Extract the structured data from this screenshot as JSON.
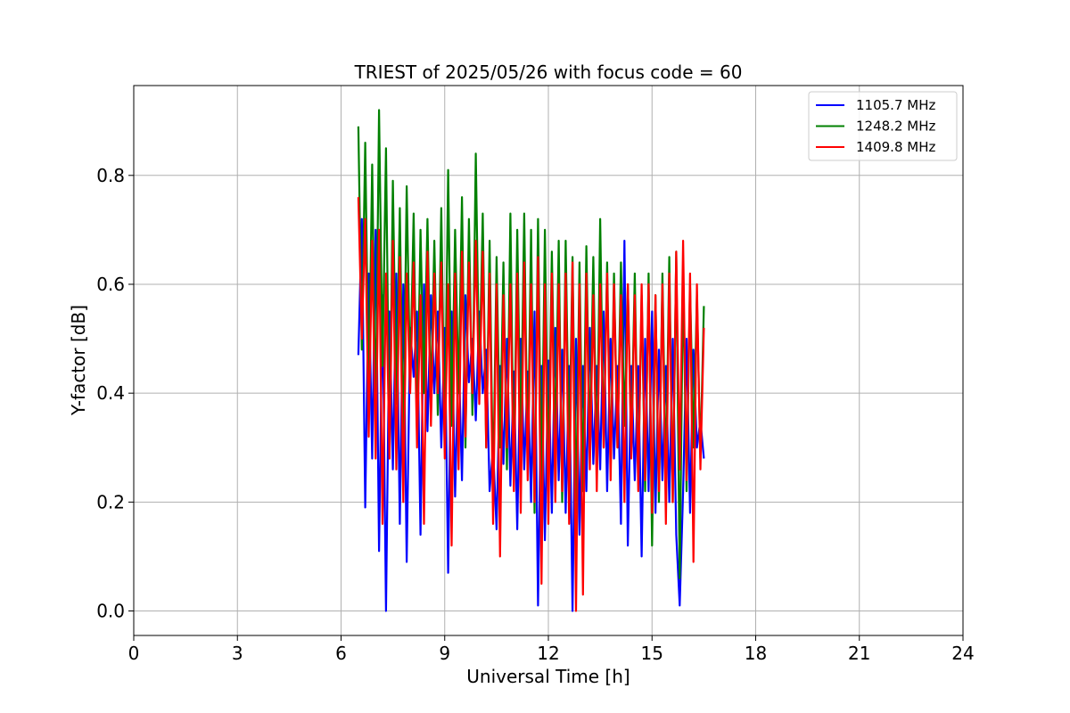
{
  "chart_data": {
    "type": "line",
    "title": "TRIEST of 2025/05/26 with focus code = 60",
    "xlabel": "Universal Time [h]",
    "ylabel": "Y-factor [dB]",
    "xlim": [
      0,
      24
    ],
    "ylim": [
      -0.045,
      0.965
    ],
    "xticks": [
      0,
      3,
      6,
      9,
      12,
      15,
      18,
      21,
      24
    ],
    "xtick_labels": [
      "0",
      "3",
      "6",
      "9",
      "12",
      "15",
      "18",
      "21",
      "24"
    ],
    "yticks": [
      0.0,
      0.2,
      0.4,
      0.6,
      0.8
    ],
    "ytick_labels": [
      "0.0",
      "0.2",
      "0.4",
      "0.6",
      "0.8"
    ],
    "grid": true,
    "legend_position": "top-right",
    "series": [
      {
        "name": "1105.7 MHz",
        "color": "#0000ff",
        "x": [
          6.5,
          6.6,
          6.7,
          6.8,
          6.9,
          7.0,
          7.1,
          7.2,
          7.3,
          7.4,
          7.5,
          7.6,
          7.7,
          7.8,
          7.9,
          8.0,
          8.1,
          8.2,
          8.3,
          8.4,
          8.5,
          8.6,
          8.7,
          8.8,
          8.9,
          9.0,
          9.1,
          9.2,
          9.3,
          9.4,
          9.5,
          9.6,
          9.7,
          9.8,
          9.9,
          10.0,
          10.1,
          10.2,
          10.3,
          10.4,
          10.5,
          10.6,
          10.7,
          10.8,
          10.9,
          11.0,
          11.1,
          11.2,
          11.3,
          11.4,
          11.5,
          11.6,
          11.7,
          11.8,
          11.9,
          12.0,
          12.1,
          12.2,
          12.3,
          12.4,
          12.5,
          12.6,
          12.7,
          12.8,
          12.9,
          13.0,
          13.1,
          13.2,
          13.3,
          13.4,
          13.5,
          13.6,
          13.7,
          13.8,
          13.9,
          14.0,
          14.1,
          14.2,
          14.3,
          14.4,
          14.5,
          14.6,
          14.7,
          14.8,
          14.9,
          15.0,
          15.1,
          15.2,
          15.3,
          15.4,
          15.5,
          15.6,
          15.7,
          15.8,
          15.9,
          16.0,
          16.1,
          16.2,
          16.3,
          16.4,
          16.5
        ],
        "y": [
          0.47,
          0.72,
          0.19,
          0.62,
          0.28,
          0.7,
          0.11,
          0.58,
          0.0,
          0.55,
          0.26,
          0.62,
          0.16,
          0.6,
          0.09,
          0.52,
          0.43,
          0.55,
          0.14,
          0.6,
          0.33,
          0.58,
          0.4,
          0.55,
          0.3,
          0.52,
          0.07,
          0.55,
          0.21,
          0.48,
          0.24,
          0.58,
          0.42,
          0.5,
          0.35,
          0.55,
          0.4,
          0.48,
          0.22,
          0.3,
          0.15,
          0.45,
          0.27,
          0.5,
          0.23,
          0.44,
          0.15,
          0.5,
          0.26,
          0.44,
          0.2,
          0.55,
          0.01,
          0.45,
          0.13,
          0.46,
          0.18,
          0.52,
          0.24,
          0.48,
          0.18,
          0.45,
          0.0,
          0.5,
          0.14,
          0.45,
          0.22,
          0.52,
          0.27,
          0.45,
          0.26,
          0.55,
          0.22,
          0.5,
          0.28,
          0.45,
          0.16,
          0.68,
          0.12,
          0.45,
          0.24,
          0.45,
          0.1,
          0.5,
          0.22,
          0.55,
          0.18,
          0.48,
          0.24,
          0.45,
          0.2,
          0.5,
          0.14,
          0.01,
          0.22,
          0.5,
          0.18,
          0.48,
          0.3,
          0.35,
          0.28
        ]
      },
      {
        "name": "1248.2 MHz",
        "color": "#008000",
        "x": [
          6.5,
          6.6,
          6.7,
          6.8,
          6.9,
          7.0,
          7.1,
          7.2,
          7.3,
          7.4,
          7.5,
          7.6,
          7.7,
          7.8,
          7.9,
          8.0,
          8.1,
          8.2,
          8.3,
          8.4,
          8.5,
          8.6,
          8.7,
          8.8,
          8.9,
          9.0,
          9.1,
          9.2,
          9.3,
          9.4,
          9.5,
          9.6,
          9.7,
          9.8,
          9.9,
          10.0,
          10.1,
          10.2,
          10.3,
          10.4,
          10.5,
          10.6,
          10.7,
          10.8,
          10.9,
          11.0,
          11.1,
          11.2,
          11.3,
          11.4,
          11.5,
          11.6,
          11.7,
          11.8,
          11.9,
          12.0,
          12.1,
          12.2,
          12.3,
          12.4,
          12.5,
          12.6,
          12.7,
          12.8,
          12.9,
          13.0,
          13.1,
          13.2,
          13.3,
          13.4,
          13.5,
          13.6,
          13.7,
          13.8,
          13.9,
          14.0,
          14.1,
          14.2,
          14.3,
          14.4,
          14.5,
          14.6,
          14.7,
          14.8,
          14.9,
          15.0,
          15.1,
          15.2,
          15.3,
          15.4,
          15.5,
          15.6,
          15.7,
          15.8,
          15.9,
          16.0,
          16.1,
          16.2,
          16.3,
          16.4,
          16.5
        ],
        "y": [
          0.89,
          0.48,
          0.86,
          0.4,
          0.82,
          0.35,
          0.92,
          0.45,
          0.85,
          0.28,
          0.79,
          0.38,
          0.74,
          0.3,
          0.78,
          0.42,
          0.73,
          0.32,
          0.7,
          0.4,
          0.72,
          0.38,
          0.68,
          0.36,
          0.74,
          0.3,
          0.81,
          0.34,
          0.7,
          0.4,
          0.76,
          0.3,
          0.72,
          0.36,
          0.84,
          0.42,
          0.73,
          0.3,
          0.68,
          0.22,
          0.65,
          0.3,
          0.64,
          0.26,
          0.73,
          0.24,
          0.7,
          0.3,
          0.73,
          0.26,
          0.7,
          0.18,
          0.72,
          0.22,
          0.7,
          0.24,
          0.66,
          0.3,
          0.68,
          0.2,
          0.68,
          0.28,
          0.65,
          0.18,
          0.64,
          0.22,
          0.67,
          0.3,
          0.65,
          0.26,
          0.72,
          0.3,
          0.64,
          0.26,
          0.62,
          0.3,
          0.64,
          0.34,
          0.6,
          0.3,
          0.62,
          0.24,
          0.58,
          0.22,
          0.62,
          0.12,
          0.58,
          0.2,
          0.62,
          0.24,
          0.65,
          0.2,
          0.66,
          0.06,
          0.62,
          0.22,
          0.6,
          0.3,
          0.58,
          0.28,
          0.56
        ]
      },
      {
        "name": "1409.8 MHz",
        "color": "#ff0000",
        "x": [
          6.5,
          6.6,
          6.7,
          6.8,
          6.9,
          7.0,
          7.1,
          7.2,
          7.3,
          7.4,
          7.5,
          7.6,
          7.7,
          7.8,
          7.9,
          8.0,
          8.1,
          8.2,
          8.3,
          8.4,
          8.5,
          8.6,
          8.7,
          8.8,
          8.9,
          9.0,
          9.1,
          9.2,
          9.3,
          9.4,
          9.5,
          9.6,
          9.7,
          9.8,
          9.9,
          10.0,
          10.1,
          10.2,
          10.3,
          10.4,
          10.5,
          10.6,
          10.7,
          10.8,
          10.9,
          11.0,
          11.1,
          11.2,
          11.3,
          11.4,
          11.5,
          11.6,
          11.7,
          11.8,
          11.9,
          12.0,
          12.1,
          12.2,
          12.3,
          12.4,
          12.5,
          12.6,
          12.7,
          12.8,
          12.9,
          13.0,
          13.1,
          13.2,
          13.3,
          13.4,
          13.5,
          13.6,
          13.7,
          13.8,
          13.9,
          14.0,
          14.1,
          14.2,
          14.3,
          14.4,
          14.5,
          14.6,
          14.7,
          14.8,
          14.9,
          15.0,
          15.1,
          15.2,
          15.3,
          15.4,
          15.5,
          15.6,
          15.7,
          15.8,
          15.9,
          16.0,
          16.1,
          16.2,
          16.3,
          16.4,
          16.5
        ],
        "y": [
          0.76,
          0.5,
          0.72,
          0.32,
          0.68,
          0.28,
          0.7,
          0.16,
          0.62,
          0.28,
          0.68,
          0.26,
          0.65,
          0.2,
          0.62,
          0.4,
          0.64,
          0.3,
          0.58,
          0.16,
          0.66,
          0.34,
          0.62,
          0.4,
          0.64,
          0.28,
          0.6,
          0.12,
          0.62,
          0.26,
          0.66,
          0.32,
          0.64,
          0.4,
          0.68,
          0.38,
          0.66,
          0.3,
          0.62,
          0.16,
          0.6,
          0.1,
          0.58,
          0.3,
          0.6,
          0.22,
          0.62,
          0.18,
          0.64,
          0.24,
          0.6,
          0.2,
          0.65,
          0.05,
          0.6,
          0.16,
          0.62,
          0.2,
          0.6,
          0.22,
          0.62,
          0.16,
          0.64,
          0.0,
          0.6,
          0.03,
          0.62,
          0.26,
          0.58,
          0.22,
          0.6,
          0.3,
          0.62,
          0.24,
          0.6,
          0.3,
          0.58,
          0.2,
          0.6,
          0.28,
          0.58,
          0.22,
          0.6,
          0.24,
          0.6,
          0.18,
          0.58,
          0.22,
          0.6,
          0.16,
          0.62,
          0.2,
          0.66,
          0.26,
          0.68,
          0.24,
          0.62,
          0.09,
          0.6,
          0.26,
          0.52
        ]
      }
    ]
  }
}
